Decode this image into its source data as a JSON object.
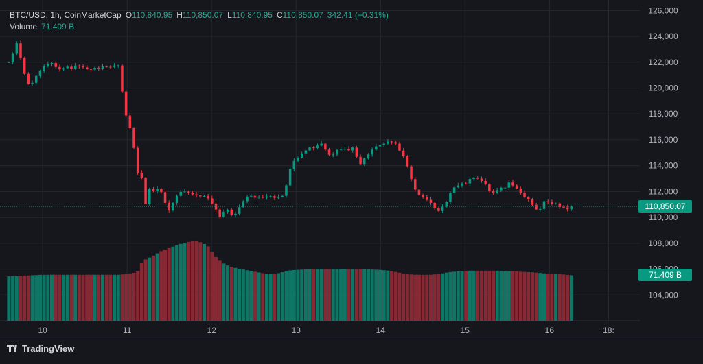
{
  "legend": {
    "symbol": "BTC/USD, 1h, CoinMarketCap",
    "open_label": "O",
    "open": "110,840.95",
    "high_label": "H",
    "high": "110,850.07",
    "low_label": "L",
    "low": "110,840.95",
    "close_label": "C",
    "close": "110,850.07",
    "change": "342.41 (+0.31%)",
    "volume_label": "Volume",
    "volume_value": "71.409 B"
  },
  "price_tag": "110,850.07",
  "volume_tag": "71.409 B",
  "brand": "TradingView",
  "colors": {
    "up": "#089981",
    "down": "#f23645",
    "background": "#16171c",
    "grid": "#252830",
    "text": "#d1d4dc"
  },
  "chart_data": {
    "type": "candlestick",
    "symbol": "BTC/USD",
    "interval": "1h",
    "y_ticks": [
      "104,000",
      "106,000",
      "108,000",
      "110,000",
      "112,000",
      "114,000",
      "116,000",
      "118,000",
      "120,000",
      "122,000",
      "124,000",
      "126,000"
    ],
    "y_tick_values": [
      104000,
      106000,
      108000,
      110000,
      112000,
      114000,
      116000,
      118000,
      120000,
      122000,
      124000,
      126000
    ],
    "ylim": [
      102000,
      126600
    ],
    "x_ticks": [
      "10",
      "11",
      "12",
      "13",
      "14",
      "15",
      "16",
      "18:"
    ],
    "x_tick_values": [
      10,
      11,
      12,
      13,
      14,
      15,
      16,
      16.7
    ],
    "xlim": [
      9.56,
      17.07
    ],
    "last_price": 110850.07,
    "grid": true,
    "close_path": [
      [
        9.6,
        122000
      ],
      [
        9.65,
        122700
      ],
      [
        9.7,
        123600
      ],
      [
        9.74,
        122300
      ],
      [
        9.78,
        121200
      ],
      [
        9.82,
        120400
      ],
      [
        9.86,
        120100
      ],
      [
        9.9,
        120800
      ],
      [
        9.95,
        121100
      ],
      [
        10.0,
        121600
      ],
      [
        10.05,
        121800
      ],
      [
        10.1,
        122000
      ],
      [
        10.14,
        121700
      ],
      [
        10.18,
        121500
      ],
      [
        10.22,
        121400
      ],
      [
        10.28,
        121700
      ],
      [
        10.34,
        121500
      ],
      [
        10.4,
        121800
      ],
      [
        10.46,
        121600
      ],
      [
        10.5,
        121600
      ],
      [
        10.55,
        121300
      ],
      [
        10.6,
        121600
      ],
      [
        10.66,
        121500
      ],
      [
        10.72,
        121700
      ],
      [
        10.78,
        121600
      ],
      [
        10.84,
        121700
      ],
      [
        10.88,
        121900
      ],
      [
        10.92,
        121500
      ],
      [
        10.95,
        119000
      ],
      [
        10.98,
        118000
      ],
      [
        11.01,
        117500
      ],
      [
        11.05,
        116500
      ],
      [
        11.09,
        115000
      ],
      [
        11.12,
        113500
      ],
      [
        11.15,
        113300
      ],
      [
        11.18,
        113000
      ],
      [
        11.22,
        111000
      ],
      [
        11.26,
        112200
      ],
      [
        11.32,
        112000
      ],
      [
        11.38,
        112300
      ],
      [
        11.44,
        111400
      ],
      [
        11.48,
        110300
      ],
      [
        11.52,
        110900
      ],
      [
        11.56,
        111300
      ],
      [
        11.6,
        111800
      ],
      [
        11.64,
        112000
      ],
      [
        11.7,
        112000
      ],
      [
        11.76,
        111800
      ],
      [
        11.82,
        111700
      ],
      [
        11.88,
        111600
      ],
      [
        11.94,
        111700
      ],
      [
        11.98,
        111200
      ],
      [
        12.02,
        111000
      ],
      [
        12.06,
        110500
      ],
      [
        12.1,
        110000
      ],
      [
        12.14,
        110400
      ],
      [
        12.18,
        110700
      ],
      [
        12.22,
        110300
      ],
      [
        12.26,
        110000
      ],
      [
        12.3,
        110500
      ],
      [
        12.34,
        110900
      ],
      [
        12.38,
        111300
      ],
      [
        12.42,
        111600
      ],
      [
        12.46,
        111700
      ],
      [
        12.5,
        111500
      ],
      [
        12.56,
        111600
      ],
      [
        12.62,
        111500
      ],
      [
        12.68,
        111700
      ],
      [
        12.74,
        111500
      ],
      [
        12.8,
        111600
      ],
      [
        12.86,
        111700
      ],
      [
        12.9,
        113000
      ],
      [
        12.94,
        114000
      ],
      [
        12.98,
        114400
      ],
      [
        13.02,
        114600
      ],
      [
        13.06,
        114900
      ],
      [
        13.1,
        115100
      ],
      [
        13.14,
        115300
      ],
      [
        13.18,
        115500
      ],
      [
        13.22,
        115300
      ],
      [
        13.26,
        115600
      ],
      [
        13.3,
        115700
      ],
      [
        13.34,
        115300
      ],
      [
        13.38,
        114900
      ],
      [
        13.42,
        114700
      ],
      [
        13.48,
        115200
      ],
      [
        13.54,
        115300
      ],
      [
        13.6,
        115300
      ],
      [
        13.64,
        115100
      ],
      [
        13.68,
        115500
      ],
      [
        13.72,
        114600
      ],
      [
        13.76,
        114100
      ],
      [
        13.8,
        114500
      ],
      [
        13.86,
        114900
      ],
      [
        13.92,
        115400
      ],
      [
        13.98,
        115600
      ],
      [
        14.02,
        115600
      ],
      [
        14.06,
        115800
      ],
      [
        14.1,
        115900
      ],
      [
        14.14,
        115800
      ],
      [
        14.18,
        115700
      ],
      [
        14.22,
        115200
      ],
      [
        14.26,
        114900
      ],
      [
        14.3,
        114300
      ],
      [
        14.34,
        113500
      ],
      [
        14.38,
        112600
      ],
      [
        14.42,
        112000
      ],
      [
        14.46,
        111700
      ],
      [
        14.5,
        111600
      ],
      [
        14.56,
        111300
      ],
      [
        14.6,
        111100
      ],
      [
        14.64,
        110700
      ],
      [
        14.68,
        110400
      ],
      [
        14.72,
        110900
      ],
      [
        14.76,
        110700
      ],
      [
        14.8,
        111700
      ],
      [
        14.84,
        112000
      ],
      [
        14.88,
        112400
      ],
      [
        14.94,
        112500
      ],
      [
        14.98,
        112700
      ],
      [
        15.02,
        112600
      ],
      [
        15.06,
        113000
      ],
      [
        15.12,
        113100
      ],
      [
        15.18,
        112900
      ],
      [
        15.24,
        112600
      ],
      [
        15.28,
        112100
      ],
      [
        15.32,
        111800
      ],
      [
        15.36,
        112000
      ],
      [
        15.42,
        112300
      ],
      [
        15.48,
        112300
      ],
      [
        15.52,
        112700
      ],
      [
        15.56,
        112500
      ],
      [
        15.62,
        112200
      ],
      [
        15.66,
        111900
      ],
      [
        15.7,
        111600
      ],
      [
        15.74,
        111500
      ],
      [
        15.78,
        111100
      ],
      [
        15.82,
        110800
      ],
      [
        15.86,
        110500
      ],
      [
        15.9,
        110700
      ],
      [
        15.94,
        111300
      ],
      [
        15.98,
        111200
      ],
      [
        16.02,
        111000
      ],
      [
        16.06,
        111200
      ],
      [
        16.1,
        110900
      ],
      [
        16.14,
        110700
      ],
      [
        16.18,
        110800
      ],
      [
        16.22,
        110600
      ],
      [
        16.26,
        110850
      ]
    ],
    "volume_path": [
      [
        9.6,
        55
      ],
      [
        9.8,
        56
      ],
      [
        10.0,
        57
      ],
      [
        10.2,
        57
      ],
      [
        10.4,
        57
      ],
      [
        10.6,
        57
      ],
      [
        10.8,
        57
      ],
      [
        10.9,
        57
      ],
      [
        11.0,
        58
      ],
      [
        11.12,
        60
      ],
      [
        11.15,
        68
      ],
      [
        11.2,
        75
      ],
      [
        11.3,
        80
      ],
      [
        11.4,
        86
      ],
      [
        11.5,
        90
      ],
      [
        11.6,
        94
      ],
      [
        11.7,
        97
      ],
      [
        11.8,
        99
      ],
      [
        11.88,
        97
      ],
      [
        11.96,
        92
      ],
      [
        12.04,
        80
      ],
      [
        12.12,
        72
      ],
      [
        12.2,
        68
      ],
      [
        12.3,
        65
      ],
      [
        12.4,
        63
      ],
      [
        12.5,
        61
      ],
      [
        12.6,
        59
      ],
      [
        12.7,
        58
      ],
      [
        12.8,
        59
      ],
      [
        12.9,
        62
      ],
      [
        13.0,
        63
      ],
      [
        13.2,
        64
      ],
      [
        13.4,
        64
      ],
      [
        13.6,
        64
      ],
      [
        13.8,
        64
      ],
      [
        14.0,
        63
      ],
      [
        14.1,
        62
      ],
      [
        14.2,
        60
      ],
      [
        14.3,
        58
      ],
      [
        14.4,
        57
      ],
      [
        14.5,
        57
      ],
      [
        14.6,
        57
      ],
      [
        14.7,
        58
      ],
      [
        14.8,
        60
      ],
      [
        14.9,
        61
      ],
      [
        15.0,
        62
      ],
      [
        15.2,
        62
      ],
      [
        15.4,
        62
      ],
      [
        15.6,
        61
      ],
      [
        15.8,
        60
      ],
      [
        15.9,
        59
      ],
      [
        16.0,
        58
      ],
      [
        16.1,
        58
      ],
      [
        16.2,
        57
      ],
      [
        16.3,
        56
      ]
    ]
  }
}
